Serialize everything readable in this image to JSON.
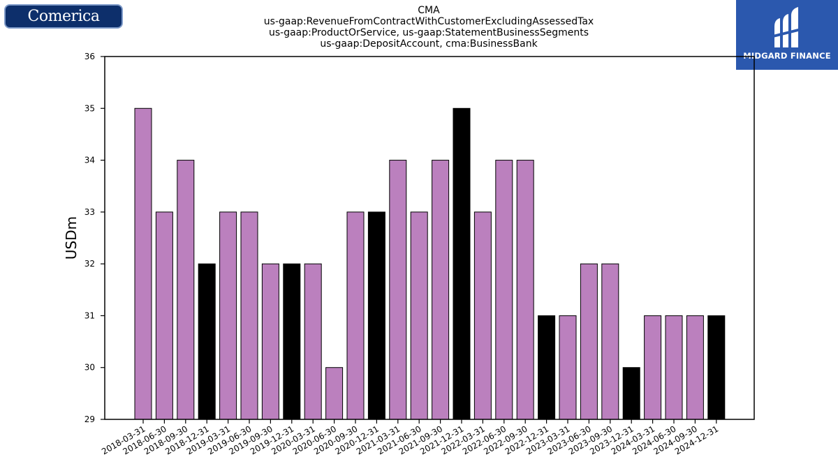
{
  "logos": {
    "left_text": "Comerica",
    "right_text": "MIDGARD FINANCE"
  },
  "title_lines": [
    "CMA",
    "us-gaap:RevenueFromContractWithCustomerExcludingAssessedTax",
    "us-gaap:ProductOrService, us-gaap:StatementBusinessSegments",
    "us-gaap:DepositAccount, cma:BusinessBank"
  ],
  "colors": {
    "bar_default": "#bb80be",
    "bar_q4": "#000000",
    "edge": "#000000"
  },
  "chart_data": {
    "type": "bar",
    "ylabel": "USDm",
    "ylim": [
      29,
      36
    ],
    "yticks": [
      29,
      30,
      31,
      32,
      33,
      34,
      35,
      36
    ],
    "categories": [
      "2018-03-31",
      "2018-06-30",
      "2018-09-30",
      "2018-12-31",
      "2019-03-31",
      "2019-06-30",
      "2019-09-30",
      "2019-12-31",
      "2020-03-31",
      "2020-06-30",
      "2020-09-30",
      "2020-12-31",
      "2021-03-31",
      "2021-06-30",
      "2021-09-30",
      "2021-12-31",
      "2022-03-31",
      "2022-06-30",
      "2022-09-30",
      "2022-12-31",
      "2023-03-31",
      "2023-06-30",
      "2023-09-30",
      "2023-12-31",
      "2024-03-31",
      "2024-06-30",
      "2024-09-30",
      "2024-12-31"
    ],
    "values": [
      35,
      33,
      34,
      32,
      33,
      33,
      32,
      32,
      32,
      30,
      33,
      33,
      34,
      33,
      34,
      35,
      33,
      34,
      34,
      31,
      31,
      32,
      32,
      30,
      31,
      31,
      31,
      31
    ]
  }
}
